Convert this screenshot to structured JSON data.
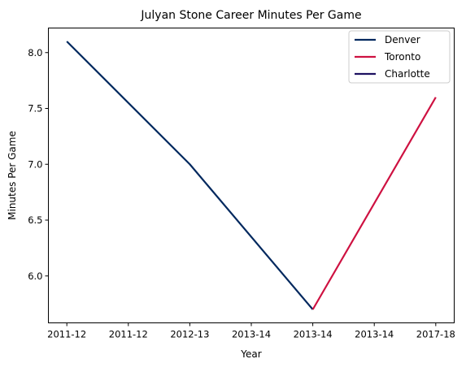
{
  "chart_data": {
    "type": "line",
    "title": "Julyan Stone Career Minutes Per Game",
    "xlabel": "Year",
    "ylabel": "Minutes Per Game",
    "categories": [
      "2011-12",
      "2011-12",
      "2012-13",
      "2013-14",
      "2013-14",
      "2013-14",
      "2017-18"
    ],
    "x": [
      0,
      1,
      2,
      3,
      4,
      5,
      6
    ],
    "y_ticks": [
      6.0,
      6.5,
      7.0,
      7.5,
      8.0
    ],
    "y_tick_labels": [
      "6.0",
      "6.5",
      "7.0",
      "7.5",
      "8.0"
    ],
    "ylim": [
      5.58,
      8.22
    ],
    "xlim": [
      -0.3,
      6.3
    ],
    "grid": false,
    "legend_position": "upper right",
    "series": [
      {
        "name": "Denver",
        "color": "#00285e",
        "points": [
          [
            0,
            8.1
          ],
          [
            2,
            7.0
          ],
          [
            4,
            5.7
          ]
        ]
      },
      {
        "name": "Toronto",
        "color": "#ce1141",
        "points": [
          [
            4,
            5.7
          ],
          [
            6,
            7.6
          ]
        ]
      },
      {
        "name": "Charlotte",
        "color": "#1d1160",
        "points": []
      }
    ]
  }
}
